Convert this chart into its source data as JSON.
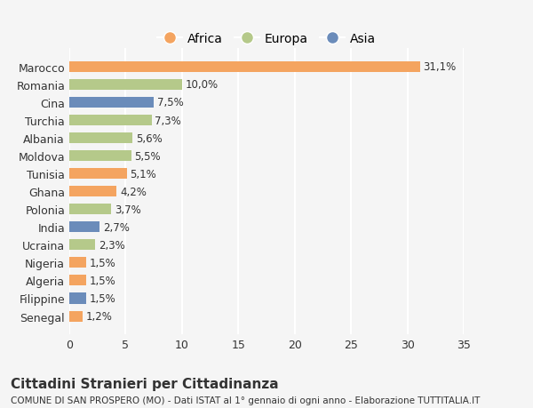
{
  "countries": [
    "Senegal",
    "Filippine",
    "Algeria",
    "Nigeria",
    "Ucraina",
    "India",
    "Polonia",
    "Ghana",
    "Tunisia",
    "Moldova",
    "Albania",
    "Turchia",
    "Cina",
    "Romania",
    "Marocco"
  ],
  "values": [
    1.2,
    1.5,
    1.5,
    1.5,
    2.3,
    2.7,
    3.7,
    4.2,
    5.1,
    5.5,
    5.6,
    7.3,
    7.5,
    10.0,
    31.1
  ],
  "labels": [
    "1,2%",
    "1,5%",
    "1,5%",
    "1,5%",
    "2,3%",
    "2,7%",
    "3,7%",
    "4,2%",
    "5,1%",
    "5,5%",
    "5,6%",
    "7,3%",
    "7,5%",
    "10,0%",
    "31,1%"
  ],
  "colors": [
    "#f4a460",
    "#6b8cba",
    "#f4a460",
    "#f4a460",
    "#b5c98a",
    "#6b8cba",
    "#b5c98a",
    "#f4a460",
    "#f4a460",
    "#b5c98a",
    "#b5c98a",
    "#b5c98a",
    "#6b8cba",
    "#b5c98a",
    "#f4a460"
  ],
  "legend_labels": [
    "Africa",
    "Europa",
    "Asia"
  ],
  "legend_colors": [
    "#f4a460",
    "#b5c98a",
    "#6b8cba"
  ],
  "title": "Cittadini Stranieri per Cittadinanza",
  "subtitle": "COMUNE DI SAN PROSPERO (MO) - Dati ISTAT al 1° gennaio di ogni anno - Elaborazione TUTTITALIA.IT",
  "xlim": [
    0,
    35
  ],
  "xticks": [
    0,
    5,
    10,
    15,
    20,
    25,
    30,
    35
  ],
  "bg_color": "#f5f5f5",
  "grid_color": "#ffffff",
  "text_color": "#333333"
}
